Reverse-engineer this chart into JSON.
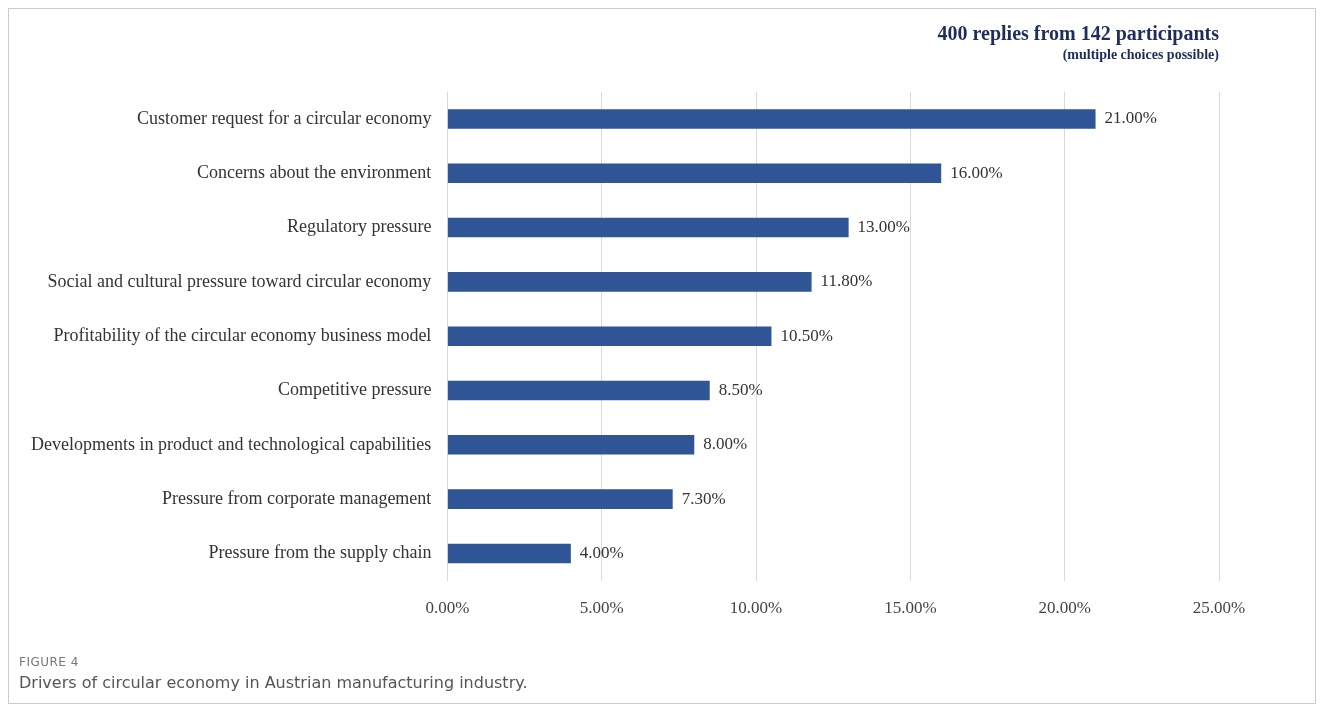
{
  "chart_data": {
    "type": "bar",
    "orientation": "horizontal",
    "title": "400 replies from 142 participants",
    "subtitle": "(multiple choices possible)",
    "categories": [
      "Customer request for a circular economy",
      "Concerns about the environment",
      "Regulatory pressure",
      "Social and cultural pressure toward circular economy",
      "Profitability of the circular economy business model",
      "Competitive pressure",
      "Developments in product and technological capabilities",
      "Pressure from corporate management",
      "Pressure from the supply chain"
    ],
    "values": [
      21,
      16,
      13,
      11.8,
      10.5,
      8.5,
      8,
      7.3,
      4
    ],
    "value_labels": [
      "21.00%",
      "16.00%",
      "13.00%",
      "11.80%",
      "10.50%",
      "8.50%",
      "8.00%",
      "7.30%",
      "4.00%"
    ],
    "color": "#2f5597",
    "xlim": [
      0,
      25
    ],
    "xticks": [
      {
        "value": 0,
        "label": "0.00%"
      },
      {
        "value": 5,
        "label": "5.00%"
      },
      {
        "value": 10,
        "label": "10.00%"
      },
      {
        "value": 15,
        "label": "15.00%"
      },
      {
        "value": 20,
        "label": "20.00%"
      },
      {
        "value": 25,
        "label": "25.00%"
      }
    ],
    "grid": "x",
    "annotations": [
      "FIGURE 4",
      "Drivers of circular economy in Austrian manufacturing industry."
    ]
  }
}
